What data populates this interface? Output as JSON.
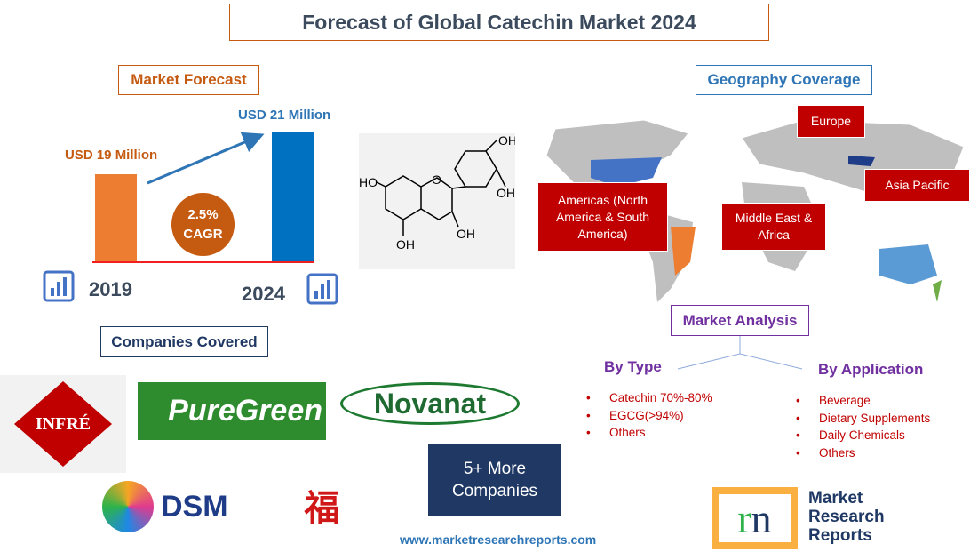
{
  "title": "Forecast of Global Catechin Market 2024",
  "market_forecast": {
    "heading": "Market Forecast",
    "value_2019": "USD 19 Million",
    "value_2024": "USD 21 Million",
    "year_2019": "2019",
    "year_2024": "2024",
    "cagr_value": "2.5%",
    "cagr_label": "CAGR",
    "colors": {
      "2019": "#ed7d31",
      "2024": "#0070c0",
      "cagr": "#c55a11"
    }
  },
  "molecule": {
    "labels": [
      "OH",
      "OH",
      "HO",
      "O",
      "OH",
      "OH"
    ]
  },
  "companies": {
    "heading": "Companies Covered",
    "logos": [
      "TEA INFRÉ decaf",
      "PureGreen",
      "Novanat",
      "DSM",
      "Sunfull"
    ],
    "more": "5+ More Companies"
  },
  "website": "www.marketresearchreports.com",
  "geography": {
    "heading": "Geography Coverage",
    "regions": [
      "Europe",
      "Americas (North America & South America)",
      "Middle East & Africa",
      "Asia Pacific"
    ]
  },
  "analysis": {
    "heading": "Market Analysis",
    "by_type": {
      "heading": "By Type",
      "items": [
        "Catechin 70%-80%",
        "EGCG(>94%)",
        "Others"
      ]
    },
    "by_application": {
      "heading": "By Application",
      "items": [
        "Beverage",
        "Dietary Supplements",
        "Daily Chemicals",
        "Others"
      ]
    }
  },
  "brand_logo": {
    "lines": [
      "Market",
      "Research",
      "Reports"
    ]
  }
}
